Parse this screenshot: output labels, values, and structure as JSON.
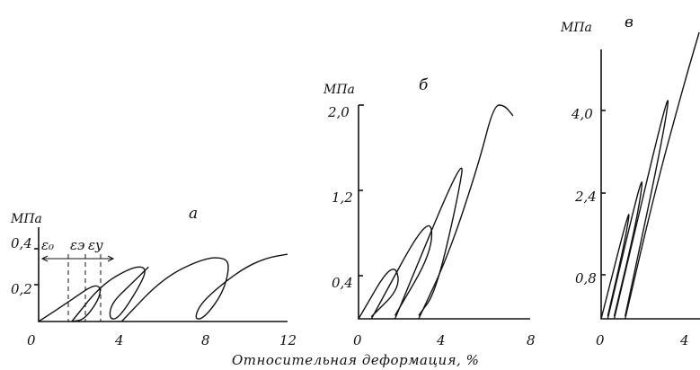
{
  "x_axis_label": "Относительная деформация, %",
  "epsilon_labels": [
    "ε₀",
    "εэ",
    "εу"
  ],
  "chart_data": [
    {
      "type": "line",
      "panel_label": "а",
      "y_unit": "МПа",
      "xlim": [
        0,
        12
      ],
      "ylim": [
        0,
        0.4
      ],
      "x_ticks": [
        "0",
        "4",
        "8",
        "12"
      ],
      "y_ticks": [
        "0,2",
        "0,4"
      ],
      "series": [
        {
          "values": [
            [
              0,
              0
            ],
            [
              1.6,
              0.12
            ],
            [
              2.6,
              0.2
            ],
            [
              3.0,
              0.19
            ],
            [
              2.9,
              0.12
            ],
            [
              2.2,
              0.01
            ],
            [
              1.6,
              0
            ]
          ]
        },
        {
          "values": [
            [
              1.6,
              0
            ],
            [
              3.0,
              0.2
            ],
            [
              4.5,
              0.3
            ],
            [
              5.2,
              0.3
            ],
            [
              5.0,
              0.22
            ],
            [
              3.9,
              0.02
            ],
            [
              3.4,
              0.01
            ],
            [
              3.5,
              0.1
            ],
            [
              4.4,
              0.2
            ],
            [
              5.3,
              0.3
            ]
          ]
        },
        {
          "values": [
            [
              4.0,
              0
            ],
            [
              6.0,
              0.24
            ],
            [
              8.0,
              0.35
            ],
            [
              9.0,
              0.35
            ],
            [
              9.2,
              0.3
            ],
            [
              8.9,
              0.16
            ],
            [
              8.0,
              0.02
            ],
            [
              7.5,
              0.01
            ],
            [
              7.8,
              0.1
            ],
            [
              9.0,
              0.22
            ],
            [
              10,
              0.3
            ],
            [
              11,
              0.35
            ],
            [
              12,
              0.37
            ]
          ]
        }
      ]
    },
    {
      "type": "line",
      "panel_label": "б",
      "y_unit": "МПа",
      "xlim": [
        0,
        8
      ],
      "ylim": [
        0,
        2.0
      ],
      "x_ticks": [
        "0",
        "4",
        "8"
      ],
      "y_ticks": [
        "0,4",
        "1,2",
        "2,0"
      ],
      "series": [
        {
          "values": [
            [
              0,
              0
            ],
            [
              1.6,
              0.55
            ],
            [
              2.0,
              0.3
            ],
            [
              0.6,
              0.02
            ]
          ]
        },
        {
          "values": [
            [
              0.6,
              0
            ],
            [
              3.3,
              1.0
            ],
            [
              3.5,
              0.65
            ],
            [
              1.7,
              0.03
            ]
          ]
        },
        {
          "values": [
            [
              1.7,
              0
            ],
            [
              5.0,
              1.6
            ],
            [
              4.6,
              1.1
            ],
            [
              3.6,
              0.25
            ],
            [
              2.8,
              0.03
            ]
          ]
        },
        {
          "values": [
            [
              2.8,
              0
            ],
            [
              4.2,
              0.6
            ],
            [
              5.6,
              1.45
            ],
            [
              6.3,
              2.0
            ],
            [
              6.8,
              2.0
            ],
            [
              7.2,
              1.9
            ]
          ]
        }
      ]
    },
    {
      "type": "line",
      "panel_label": "в",
      "y_unit": "МПа",
      "xlim": [
        0,
        4
      ],
      "ylim": [
        0,
        5.2
      ],
      "x_ticks": [
        "0",
        "4"
      ],
      "y_ticks": [
        "0,8",
        "2,4",
        "4,0"
      ],
      "series": [
        {
          "values": [
            [
              0,
              0
            ],
            [
              1.4,
              2.3
            ],
            [
              1.1,
              1.5
            ],
            [
              0.3,
              0.05
            ]
          ]
        },
        {
          "values": [
            [
              0.3,
              0
            ],
            [
              2.0,
              3.0
            ],
            [
              1.7,
              2.0
            ],
            [
              0.6,
              0.05
            ]
          ]
        },
        {
          "values": [
            [
              0.6,
              0
            ],
            [
              3.2,
              4.6
            ],
            [
              2.9,
              3.6
            ],
            [
              1.1,
              0.05
            ]
          ]
        },
        {
          "values": [
            [
              1.1,
              0
            ],
            [
              2.5,
              2.5
            ],
            [
              3.8,
              4.5
            ],
            [
              4.5,
              5.5
            ]
          ]
        }
      ]
    }
  ]
}
